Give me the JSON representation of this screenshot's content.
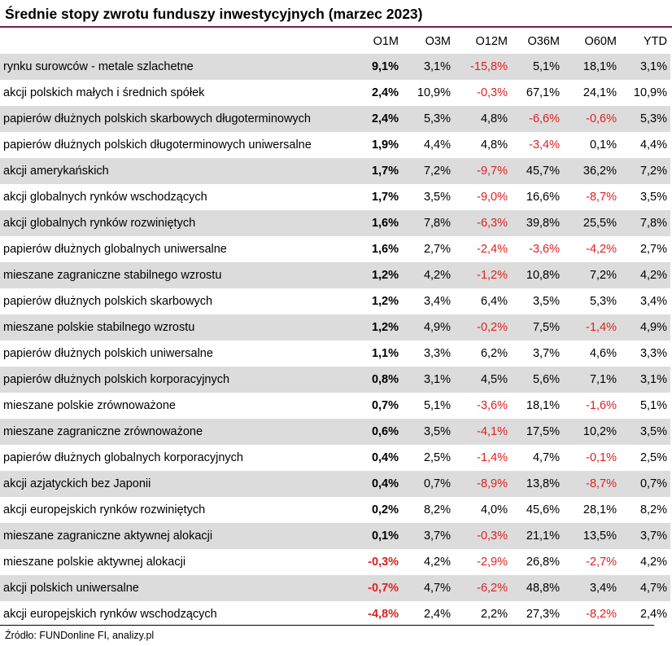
{
  "title": "Średnie stopy zwrotu funduszy inwestycyjnych (marzec 2023)",
  "columns": [
    "",
    "O1M",
    "O3M",
    "O12M",
    "O36M",
    "O60M",
    "YTD"
  ],
  "rows": [
    {
      "name": "rynku surowców - metale szlachetne",
      "values": [
        "9,1%",
        "3,1%",
        "-15,8%",
        "5,1%",
        "18,1%",
        "3,1%"
      ]
    },
    {
      "name": "akcji polskich małych i średnich spółek",
      "values": [
        "2,4%",
        "10,9%",
        "-0,3%",
        "67,1%",
        "24,1%",
        "10,9%"
      ]
    },
    {
      "name": "papierów dłużnych polskich skarbowych długoterminowych",
      "values": [
        "2,4%",
        "5,3%",
        "4,8%",
        "-6,6%",
        "-0,6%",
        "5,3%"
      ]
    },
    {
      "name": "papierów dłużnych polskich długoterminowych uniwersalne",
      "values": [
        "1,9%",
        "4,4%",
        "4,8%",
        "-3,4%",
        "0,1%",
        "4,4%"
      ]
    },
    {
      "name": "akcji amerykańskich",
      "values": [
        "1,7%",
        "7,2%",
        "-9,7%",
        "45,7%",
        "36,2%",
        "7,2%"
      ]
    },
    {
      "name": "akcji globalnych rynków wschodzących",
      "values": [
        "1,7%",
        "3,5%",
        "-9,0%",
        "16,6%",
        "-8,7%",
        "3,5%"
      ]
    },
    {
      "name": "akcji globalnych rynków rozwiniętych",
      "values": [
        "1,6%",
        "7,8%",
        "-6,3%",
        "39,8%",
        "25,5%",
        "7,8%"
      ]
    },
    {
      "name": "papierów dłużnych globalnych uniwersalne",
      "values": [
        "1,6%",
        "2,7%",
        "-2,4%",
        "-3,6%",
        "-4,2%",
        "2,7%"
      ]
    },
    {
      "name": "mieszane zagraniczne stabilnego wzrostu",
      "values": [
        "1,2%",
        "4,2%",
        "-1,2%",
        "10,8%",
        "7,2%",
        "4,2%"
      ]
    },
    {
      "name": "papierów dłużnych polskich skarbowych",
      "values": [
        "1,2%",
        "3,4%",
        "6,4%",
        "3,5%",
        "5,3%",
        "3,4%"
      ]
    },
    {
      "name": "mieszane polskie stabilnego wzrostu",
      "values": [
        "1,2%",
        "4,9%",
        "-0,2%",
        "7,5%",
        "-1,4%",
        "4,9%"
      ]
    },
    {
      "name": "papierów dłużnych polskich uniwersalne",
      "values": [
        "1,1%",
        "3,3%",
        "6,2%",
        "3,7%",
        "4,6%",
        "3,3%"
      ]
    },
    {
      "name": "papierów dłużnych polskich korporacyjnych",
      "values": [
        "0,8%",
        "3,1%",
        "4,5%",
        "5,6%",
        "7,1%",
        "3,1%"
      ]
    },
    {
      "name": "mieszane polskie zrównoważone",
      "values": [
        "0,7%",
        "5,1%",
        "-3,6%",
        "18,1%",
        "-1,6%",
        "5,1%"
      ]
    },
    {
      "name": "mieszane zagraniczne zrównoważone",
      "values": [
        "0,6%",
        "3,5%",
        "-4,1%",
        "17,5%",
        "10,2%",
        "3,5%"
      ]
    },
    {
      "name": "papierów dłużnych globalnych korporacyjnych",
      "values": [
        "0,4%",
        "2,5%",
        "-1,4%",
        "4,7%",
        "-0,1%",
        "2,5%"
      ]
    },
    {
      "name": "akcji azjatyckich bez Japonii",
      "values": [
        "0,4%",
        "0,7%",
        "-8,9%",
        "13,8%",
        "-8,7%",
        "0,7%"
      ]
    },
    {
      "name": "akcji europejskich rynków rozwiniętych",
      "values": [
        "0,2%",
        "8,2%",
        "4,0%",
        "45,6%",
        "28,1%",
        "8,2%"
      ]
    },
    {
      "name": "mieszane zagraniczne aktywnej alokacji",
      "values": [
        "0,1%",
        "3,7%",
        "-0,3%",
        "21,1%",
        "13,5%",
        "3,7%"
      ]
    },
    {
      "name": "mieszane polskie aktywnej alokacji",
      "values": [
        "-0,3%",
        "4,2%",
        "-2,9%",
        "26,8%",
        "-2,7%",
        "4,2%"
      ]
    },
    {
      "name": "akcji polskich uniwersalne",
      "values": [
        "-0,7%",
        "4,7%",
        "-6,2%",
        "48,8%",
        "3,4%",
        "4,7%"
      ]
    },
    {
      "name": "akcji europejskich rynków wschodzących",
      "values": [
        "-4,8%",
        "2,4%",
        "2,2%",
        "27,3%",
        "-8,2%",
        "2,4%"
      ]
    }
  ],
  "source": "Źródło: FUNDonline FI, analizy.pl",
  "colors": {
    "accent_rule": "#7a1f4f",
    "negative": "#e02020",
    "stripe": "#dcdcdc"
  }
}
